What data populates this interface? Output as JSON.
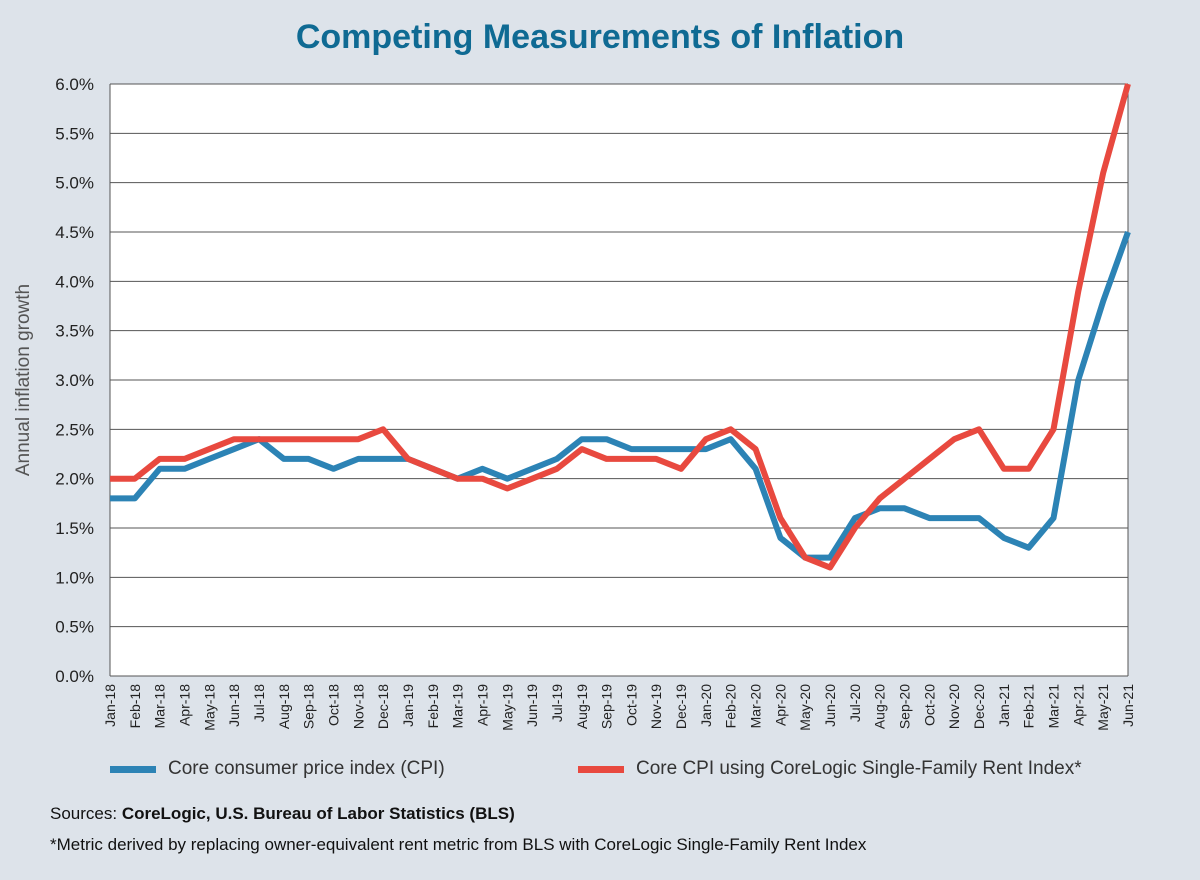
{
  "title": "Competing Measurements of Inflation",
  "sources_prefix": "Sources: ",
  "sources_text": "CoreLogic, U.S. Bureau of Labor Statistics (BLS)",
  "footnote": "*Metric derived by replacing owner-equivalent rent metric from BLS with CoreLogic Single-Family Rent Index",
  "chart_data": {
    "type": "line",
    "title": "Competing Measurements of Inflation",
    "xlabel": "",
    "ylabel": "Annual inflation growth",
    "ylim": [
      0,
      6
    ],
    "yticks": [
      "0.0%",
      "0.5%",
      "1.0%",
      "1.5%",
      "2.0%",
      "2.5%",
      "3.0%",
      "3.5%",
      "4.0%",
      "4.5%",
      "5.0%",
      "5.5%",
      "6.0%"
    ],
    "grid": true,
    "legend_position": "bottom",
    "categories": [
      "Jan-18",
      "Feb-18",
      "Mar-18",
      "Apr-18",
      "May-18",
      "Jun-18",
      "Jul-18",
      "Aug-18",
      "Sep-18",
      "Oct-18",
      "Nov-18",
      "Dec-18",
      "Jan-19",
      "Feb-19",
      "Mar-19",
      "Apr-19",
      "May-19",
      "Jun-19",
      "Jul-19",
      "Aug-19",
      "Sep-19",
      "Oct-19",
      "Nov-19",
      "Dec-19",
      "Jan-20",
      "Feb-20",
      "Mar-20",
      "Apr-20",
      "May-20",
      "Jun-20",
      "Jul-20",
      "Aug-20",
      "Sep-20",
      "Oct-20",
      "Nov-20",
      "Dec-20",
      "Jan-21",
      "Feb-21",
      "Mar-21",
      "Apr-21",
      "May-21",
      "Jun-21"
    ],
    "series": [
      {
        "name": "Core consumer price index (CPI)",
        "color": "#2c83b5",
        "values": [
          1.8,
          1.8,
          2.1,
          2.1,
          2.2,
          2.3,
          2.4,
          2.2,
          2.2,
          2.1,
          2.2,
          2.2,
          2.2,
          2.1,
          2.0,
          2.1,
          2.0,
          2.1,
          2.2,
          2.4,
          2.4,
          2.3,
          2.3,
          2.3,
          2.3,
          2.4,
          2.1,
          1.4,
          1.2,
          1.2,
          1.6,
          1.7,
          1.7,
          1.6,
          1.6,
          1.6,
          1.4,
          1.3,
          1.6,
          3.0,
          3.8,
          4.5
        ]
      },
      {
        "name": "Core CPI using CoreLogic Single-Family Rent Index*",
        "color": "#e8493f",
        "values": [
          2.0,
          2.0,
          2.2,
          2.2,
          2.3,
          2.4,
          2.4,
          2.4,
          2.4,
          2.4,
          2.4,
          2.5,
          2.2,
          2.1,
          2.0,
          2.0,
          1.9,
          2.0,
          2.1,
          2.3,
          2.2,
          2.2,
          2.2,
          2.1,
          2.4,
          2.5,
          2.3,
          1.6,
          1.2,
          1.1,
          1.5,
          1.8,
          2.0,
          2.2,
          2.4,
          2.5,
          2.1,
          2.1,
          2.5,
          3.9,
          5.1,
          6.0
        ]
      }
    ]
  }
}
